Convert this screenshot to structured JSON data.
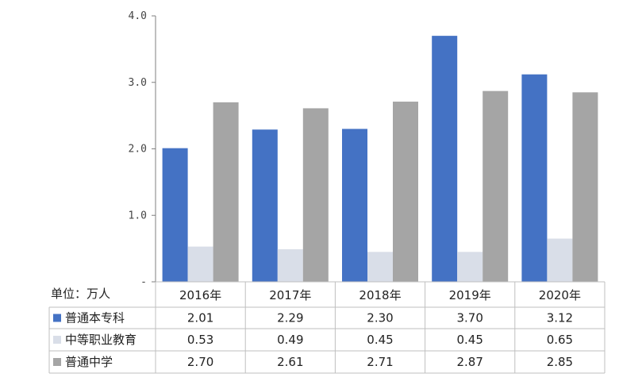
{
  "chart_data": {
    "type": "bar",
    "unit_label": "单位：万人",
    "categories": [
      "2016年",
      "2017年",
      "2018年",
      "2019年",
      "2020年"
    ],
    "series": [
      {
        "name": "普通本专科",
        "color": "#4472C4",
        "values": [
          2.01,
          2.29,
          2.3,
          3.7,
          3.12
        ],
        "labels": [
          "2.01",
          "2.29",
          "2.30",
          "3.70",
          "3.12"
        ]
      },
      {
        "name": "中等职业教育",
        "color": "#D9DEE8",
        "values": [
          0.53,
          0.49,
          0.45,
          0.45,
          0.65
        ],
        "labels": [
          "0.53",
          "0.49",
          "0.45",
          "0.45",
          "0.65"
        ]
      },
      {
        "name": "普通中学",
        "color": "#A5A5A5",
        "values": [
          2.7,
          2.61,
          2.71,
          2.87,
          2.85
        ],
        "labels": [
          "2.70",
          "2.61",
          "2.71",
          "2.87",
          "2.85"
        ]
      }
    ],
    "y_ticks": [
      0,
      1.0,
      2.0,
      3.0,
      4.0
    ],
    "y_tick_labels": [
      "-",
      "1.0",
      "2.0",
      "3.0",
      "4.0"
    ],
    "ylim": [
      0,
      4.0
    ],
    "grid": false,
    "legend": "data-table"
  }
}
